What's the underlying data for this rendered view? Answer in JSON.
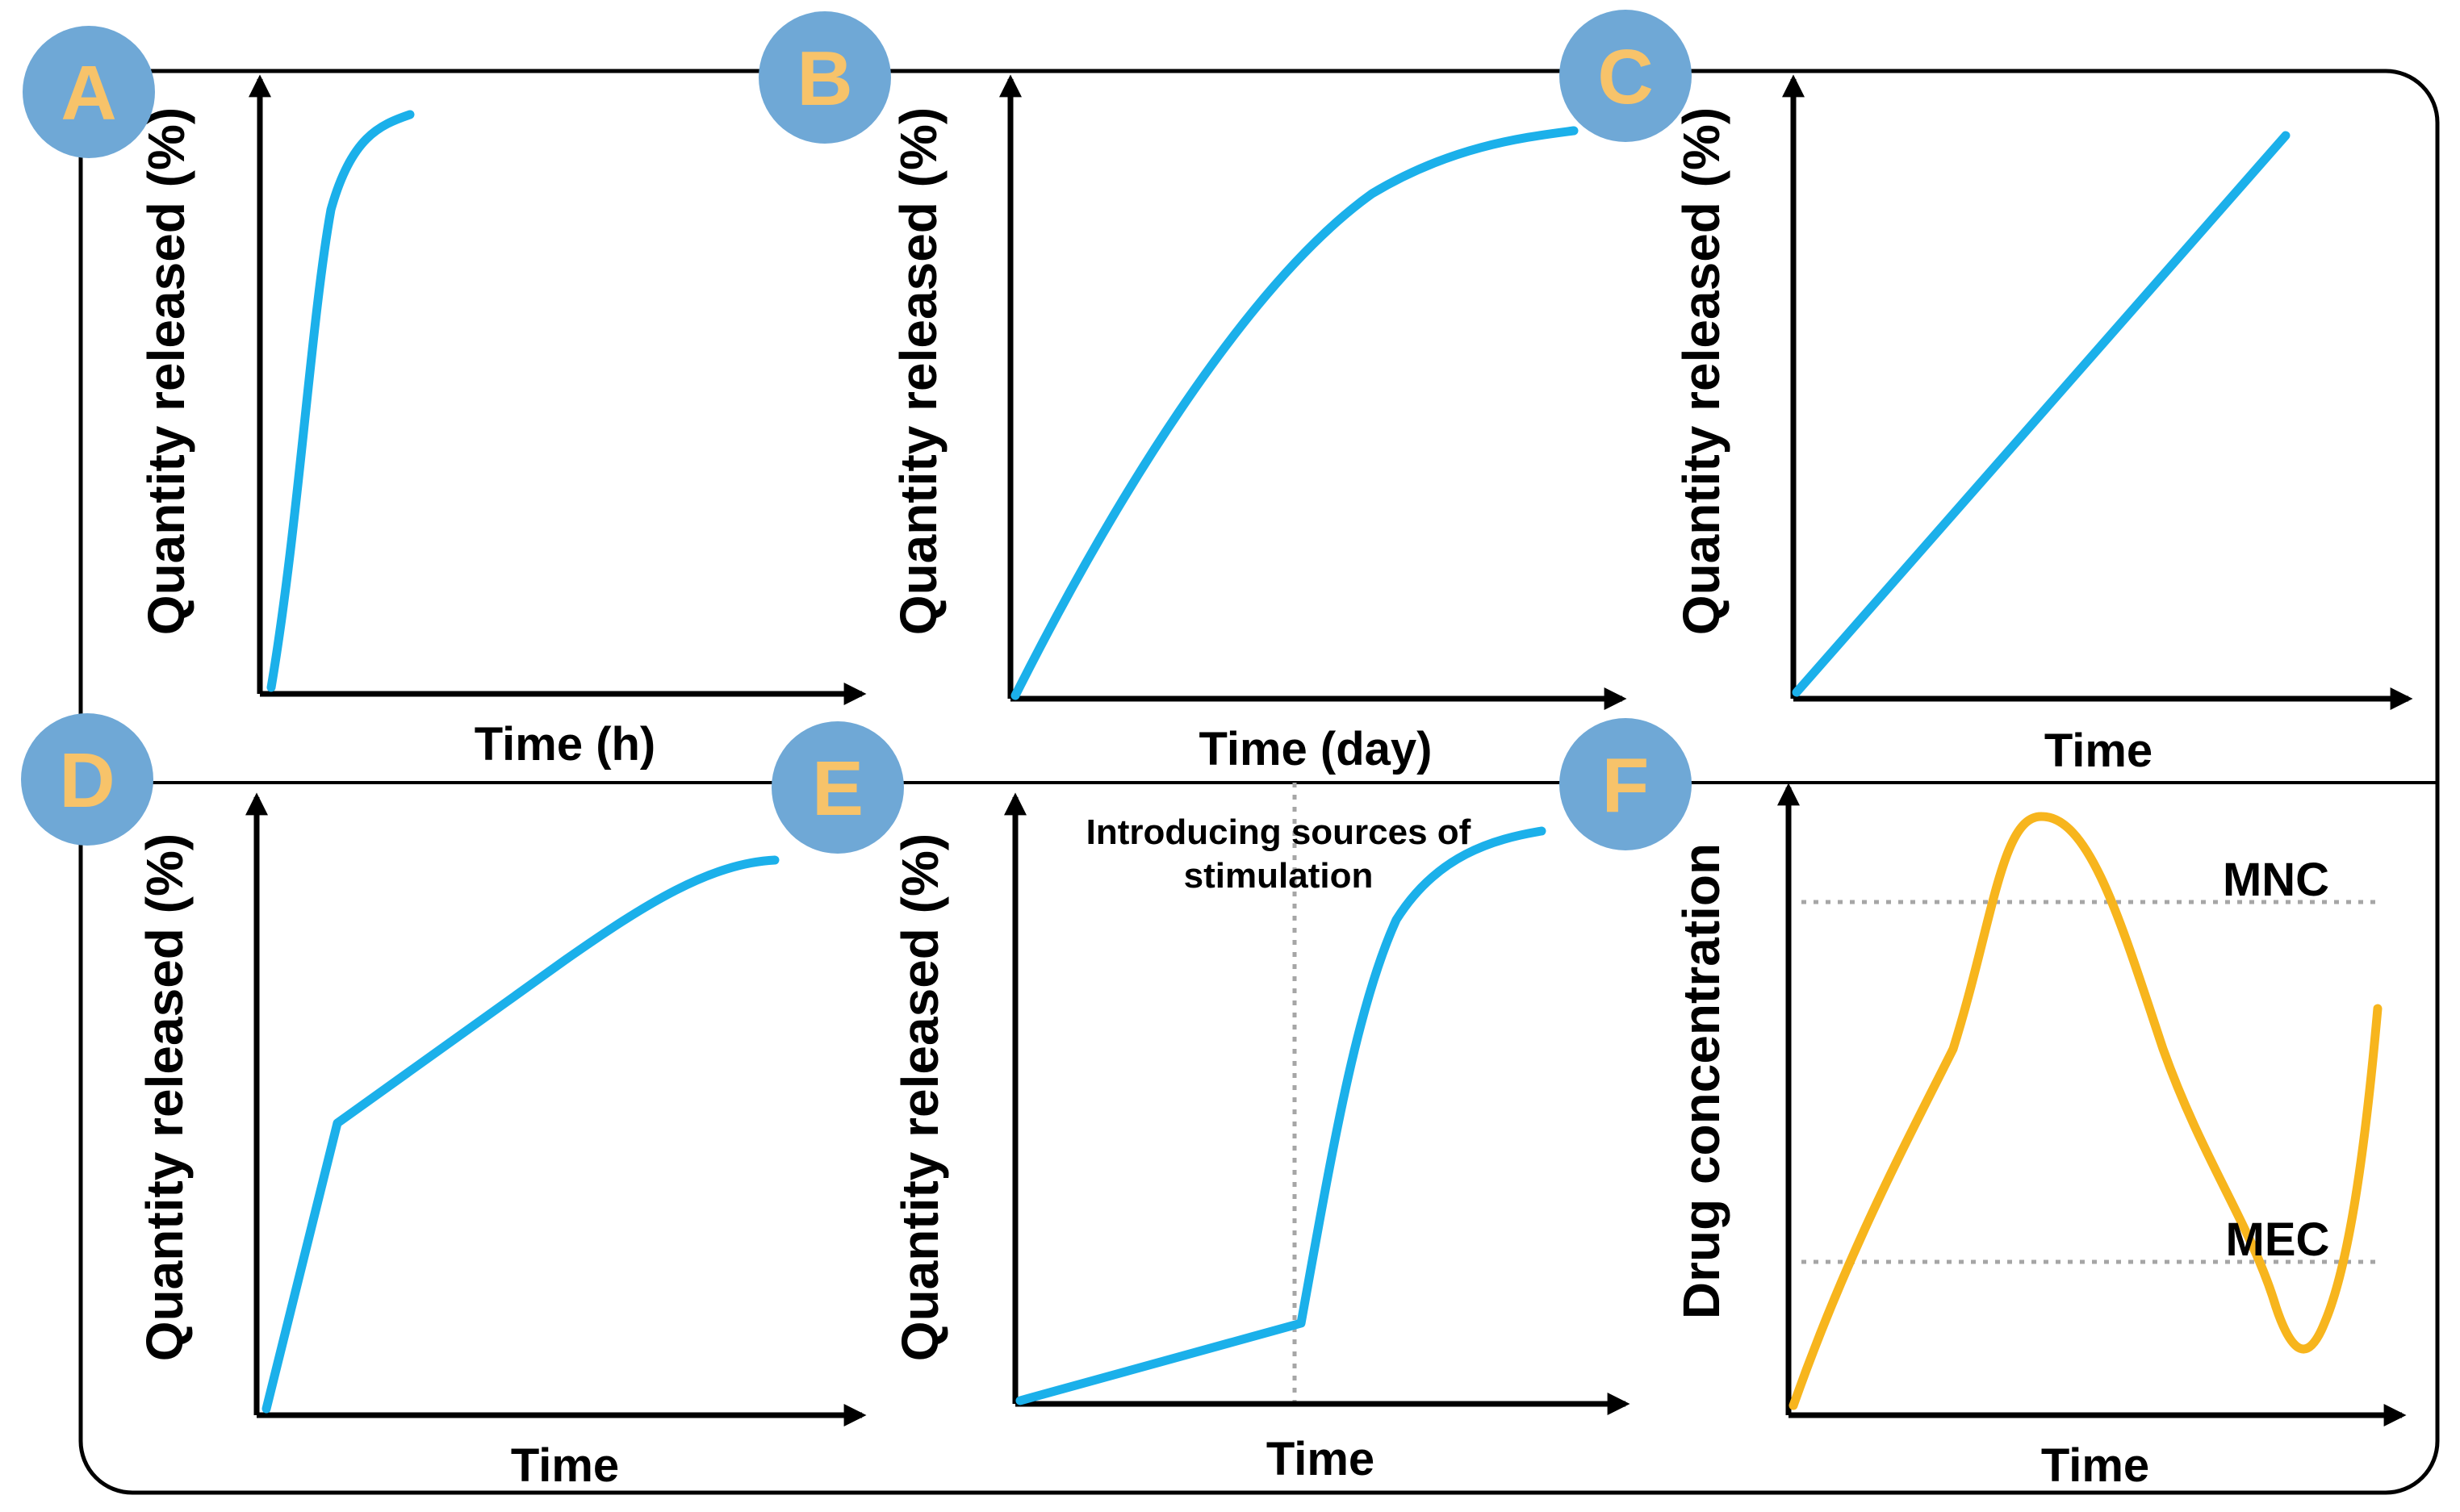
{
  "colors": {
    "curve": "#1bb0ea",
    "oscillation": "#f7b51d",
    "badge_fill": "#6fa8d6",
    "badge_text": "#f7c36a",
    "guide": "#a6a6a6",
    "frame": "#000000"
  },
  "panels": [
    {
      "id": "A",
      "badge": "A",
      "xlabel": "Time (h)",
      "ylabel": "Quantity released (%)"
    },
    {
      "id": "B",
      "badge": "B",
      "xlabel": "Time (day)",
      "ylabel": "Quantity released (%)"
    },
    {
      "id": "C",
      "badge": "C",
      "xlabel": "Time",
      "ylabel": "Quantity released (%)"
    },
    {
      "id": "D",
      "badge": "D",
      "xlabel": "Time",
      "ylabel": "Quantity released (%)"
    },
    {
      "id": "E",
      "badge": "E",
      "xlabel": "Time",
      "ylabel": "Quantity released (%)",
      "annotation_line1": "Introducing sources of",
      "annotation_line2": "stimulation"
    },
    {
      "id": "F",
      "badge": "F",
      "xlabel": "Time",
      "ylabel": "Drug concentration",
      "upper_threshold": "MNC",
      "lower_threshold": "MEC"
    }
  ]
}
